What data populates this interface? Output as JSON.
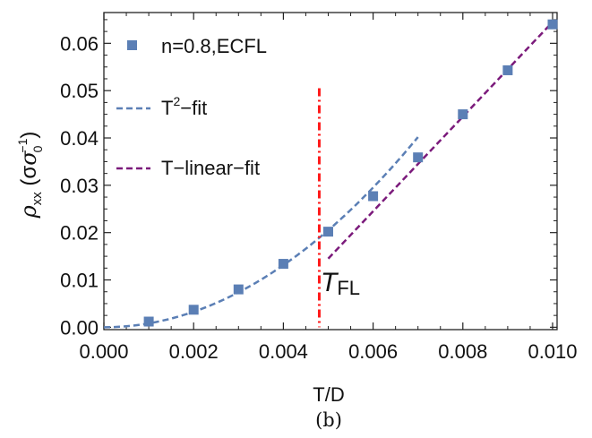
{
  "chart_data": {
    "type": "scatter",
    "panel_caption": "(b)",
    "xlabel": "T/D",
    "ylabel": "ρ",
    "ylabel_subscript": "xx",
    "ylabel_unit_open": " (σ",
    "ylabel_unit_sub": "0",
    "ylabel_unit_sup": "−1",
    "ylabel_unit_close": ")",
    "xlim": [
      0.0,
      0.0101
    ],
    "ylim": [
      -0.0005,
      0.0665
    ],
    "x_ticks": [
      "0.000",
      "0.002",
      "0.004",
      "0.006",
      "0.008",
      "0.010"
    ],
    "x_tick_values": [
      0.0,
      0.002,
      0.004,
      0.006,
      0.008,
      0.01
    ],
    "y_ticks": [
      "0.00",
      "0.01",
      "0.02",
      "0.03",
      "0.04",
      "0.05",
      "0.06"
    ],
    "y_tick_values": [
      0.0,
      0.01,
      0.02,
      0.03,
      0.04,
      0.05,
      0.06
    ],
    "grid": false,
    "legend_position": "top-left",
    "series": [
      {
        "name": "n=0.8,ECFL",
        "kind": "markers",
        "marker": "square",
        "color": "#5b7fb5",
        "x": [
          0.001,
          0.002,
          0.003,
          0.004,
          0.005,
          0.006,
          0.007,
          0.008,
          0.009,
          0.01
        ],
        "y": [
          0.0012,
          0.0037,
          0.008,
          0.0134,
          0.0202,
          0.0277,
          0.0359,
          0.045,
          0.0543,
          0.064
        ]
      },
      {
        "name": "T-fit",
        "name_base": "T",
        "name_sup": "2",
        "name_rest": "−fit",
        "kind": "dashed-line",
        "color": "#5b7fb5",
        "x_range": [
          0.0,
          0.007
        ],
        "coefficient": 820
      },
      {
        "name": "T−linear−fit",
        "kind": "dashed-line",
        "color": "#7b1a7b",
        "x_range": [
          0.005,
          0.01
        ],
        "y_at_range": [
          0.0145,
          0.0645
        ]
      }
    ],
    "annotations": [
      {
        "label": "T",
        "label_subscript": "FL",
        "kind": "vertical-dash-dot-line",
        "x": 0.0048,
        "y_range": [
          0.0,
          0.0505
        ],
        "color": "#ff1a1a"
      }
    ]
  }
}
